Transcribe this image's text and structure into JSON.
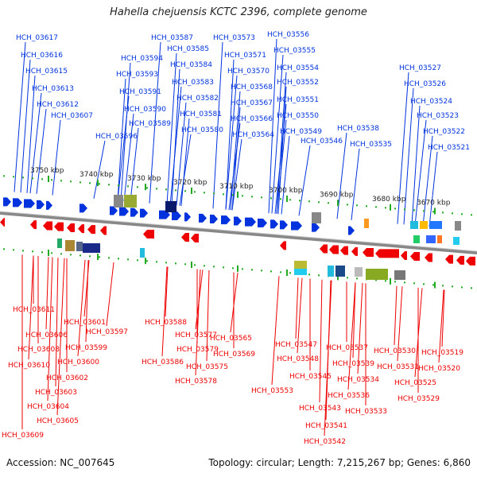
{
  "title": "Hahella chejuensis KCTC 2396, complete genome",
  "footer": {
    "accession": "Accession: NC_007645",
    "summary": "Topology: circular; Length: 7,215,267 bp; Genes: 6,860"
  },
  "colors": {
    "top_strand": "#0033dd",
    "bottom_strand": "#ee0000",
    "tick": "#22aa22",
    "backbone": "#888888"
  },
  "scale_labels": [
    "3750 kbp",
    "3740 kbp",
    "3730 kbp",
    "3720 kbp",
    "3710 kbp",
    "3700 kbp",
    "3690 kbp",
    "3680 kbp",
    "3670 kbp"
  ],
  "top_genes": [
    "HCH_03617",
    "HCH_03616",
    "HCH_03615",
    "HCH_03613",
    "HCH_03612",
    "HCH_03607",
    "HCH_03596",
    "HCH_03594",
    "HCH_03593",
    "HCH_03591",
    "HCH_03590",
    "HCH_03589",
    "HCH_03587",
    "HCH_03585",
    "HCH_03584",
    "HCH_03583",
    "HCH_03582",
    "HCH_03581",
    "HCH_03580",
    "HCH_03573",
    "HCH_03571",
    "HCH_03570",
    "HCH_03568",
    "HCH_03567",
    "HCH_03566",
    "HCH_03564",
    "HCH_03556",
    "HCH_03555",
    "HCH_03554",
    "HCH_03552",
    "HCH_03551",
    "HCH_03550",
    "HCH_03549",
    "HCH_03546",
    "HCH_03538",
    "HCH_03535",
    "HCH_03527",
    "HCH_03526",
    "HCH_03524",
    "HCH_03523",
    "HCH_03522",
    "HCH_03521"
  ],
  "bottom_genes": [
    "HCH_03611",
    "HCH_03606",
    "HCH_03601",
    "HCH_03597",
    "HCH_03608",
    "HCH_03599",
    "HCH_03610",
    "HCH_03600",
    "HCH_03602",
    "HCH_03603",
    "HCH_03604",
    "HCH_03605",
    "HCH_03609",
    "HCH_03588",
    "HCH_03586",
    "HCH_03577",
    "HCH_03579",
    "HCH_03575",
    "HCH_03578",
    "HCH_03565",
    "HCH_03569",
    "HCH_03547",
    "HCH_03548",
    "HCH_03553",
    "HCH_03545",
    "HCH_03543",
    "HCH_03541",
    "HCH_03542",
    "HCH_03537",
    "HCH_03539",
    "HCH_03534",
    "HCH_03536",
    "HCH_03533",
    "HCH_03530",
    "HCH_03531",
    "HCH_03525",
    "HCH_03529",
    "HCH_03519",
    "HCH_03520"
  ]
}
